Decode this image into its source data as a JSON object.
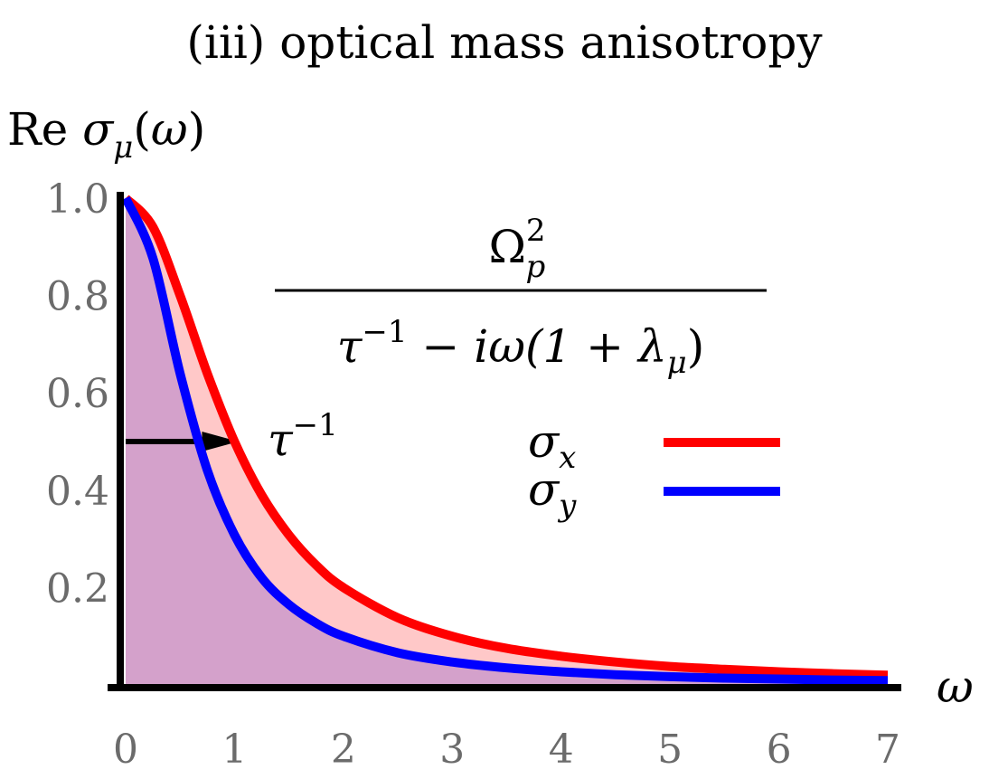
{
  "chart_data": {
    "type": "area",
    "title": "(iii) optical mass anisotropy",
    "ylabel": "Re σμ(ω)",
    "xlabel": "ω",
    "xlim": [
      0,
      7
    ],
    "ylim": [
      0,
      1.0
    ],
    "x_ticks": [
      "0",
      "1",
      "2",
      "3",
      "4",
      "5",
      "6",
      "7"
    ],
    "y_ticks": [
      "0.2",
      "0.4",
      "0.6",
      "0.8",
      "1.0"
    ],
    "grid": false,
    "legend": "center-right",
    "formula": {
      "numerator": "Ω",
      "numerator_sup": "2",
      "numerator_sub": "p",
      "denominator_a": "τ",
      "denominator_a_sup": "−1",
      "denominator_b": " − iω(1 + λ",
      "denominator_b_sub": "μ",
      "denominator_c": ")"
    },
    "annotation": {
      "label": "τ",
      "label_sup": "−1",
      "arrow_y": 0.5,
      "arrow_x_end": 1.0
    },
    "series": [
      {
        "name": "σx",
        "color": "#ff0000",
        "fill": "#ffc8c8",
        "x": [
          0,
          0.25,
          0.5,
          0.75,
          1.0,
          1.25,
          1.5,
          1.75,
          2.0,
          2.5,
          3.0,
          3.5,
          4.0,
          4.5,
          5.0,
          5.5,
          6.0,
          6.5,
          7.0
        ],
        "values": [
          1.0,
          0.941,
          0.8,
          0.64,
          0.5,
          0.39,
          0.308,
          0.246,
          0.2,
          0.138,
          0.1,
          0.075,
          0.059,
          0.047,
          0.038,
          0.032,
          0.027,
          0.023,
          0.02
        ]
      },
      {
        "name": "σy",
        "color": "#0000ff",
        "fill": "#d4a1cb",
        "x": [
          0,
          0.25,
          0.5,
          0.75,
          1.0,
          1.25,
          1.5,
          1.75,
          2.0,
          2.5,
          3.0,
          3.5,
          4.0,
          4.5,
          5.0,
          5.5,
          6.0,
          6.5,
          7.0
        ],
        "values": [
          1.0,
          0.877,
          0.64,
          0.441,
          0.308,
          0.22,
          0.165,
          0.127,
          0.1,
          0.066,
          0.047,
          0.035,
          0.027,
          0.021,
          0.017,
          0.014,
          0.012,
          0.01,
          0.009
        ]
      }
    ],
    "legend_entries": [
      {
        "symbol": "σ",
        "sub": "x",
        "color": "#ff0000"
      },
      {
        "symbol": "σ",
        "sub": "y",
        "color": "#0000ff"
      }
    ]
  }
}
